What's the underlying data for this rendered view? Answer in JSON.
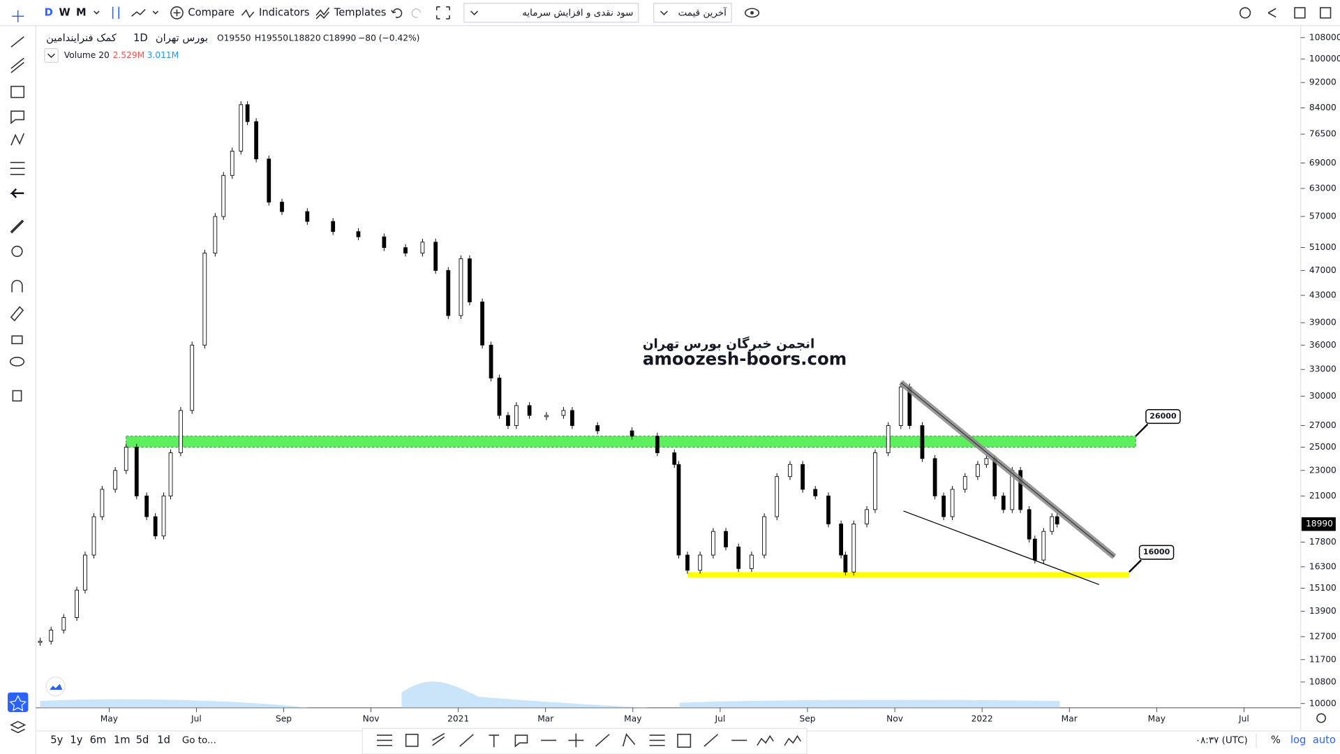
{
  "toolbar": {
    "intervals": [
      "D",
      "W",
      "M"
    ],
    "compare": "Compare",
    "indicators": "Indicators",
    "templates": "Templates",
    "dropdown_1": "سود نقدی و افزایش سرمایه",
    "dropdown_2": "آخرین قیمت"
  },
  "symbol": {
    "name": "کمک فنرایندامین",
    "interval": "1D",
    "exchange": "بورس تهران",
    "open": "O19550",
    "high": "H19550",
    "low": "L18820",
    "close": "C18990",
    "change": "−80 (−0.42%)"
  },
  "volume": {
    "label": "Volume 20",
    "value_1": "2.529M",
    "value_2": "3.011M"
  },
  "watermark": {
    "line_1": "انجمن خبرگان بورس تهران",
    "line_2": "amoozesh-boors.com"
  },
  "bottom_bar": {
    "ranges": [
      "5y",
      "1y",
      "6m",
      "1m",
      "5d",
      "1d"
    ],
    "goto": "Go to...",
    "clock": "۰۸:۳۷ (UTC)",
    "percent": "%",
    "log": "log",
    "auto": "auto"
  },
  "chart_data": {
    "type": "candlestick",
    "log_scale": true,
    "ylim": [
      10000,
      108000
    ],
    "yticks": [
      108000,
      100000,
      92000,
      84000,
      76500,
      69000,
      63000,
      57000,
      51000,
      47000,
      43000,
      39000,
      36000,
      33000,
      30000,
      27000,
      25000,
      23000,
      21000,
      17800,
      16300,
      15100,
      13900,
      12700,
      11700,
      10800,
      10000
    ],
    "xlim": [
      2.42,
      31.3
    ],
    "xticks": [
      {
        "value": 4,
        "label": "May"
      },
      {
        "value": 6,
        "label": "Jul"
      },
      {
        "value": 8,
        "label": "Sep"
      },
      {
        "value": 10,
        "label": "Nov"
      },
      {
        "value": 12,
        "label": "2021"
      },
      {
        "value": 14,
        "label": "Mar"
      },
      {
        "value": 16,
        "label": "May"
      },
      {
        "value": 18,
        "label": "Jul"
      },
      {
        "value": 20,
        "label": "Sep"
      },
      {
        "value": 22,
        "label": "Nov"
      },
      {
        "value": 24,
        "label": "2022"
      },
      {
        "value": 26,
        "label": "Mar"
      },
      {
        "value": 28,
        "label": "May"
      },
      {
        "value": 30,
        "label": "Jul"
      }
    ],
    "x": [
      2.42,
      2.67,
      2.96,
      3.26,
      3.45,
      3.65,
      3.84,
      4.14,
      4.39,
      4.63,
      4.86,
      5.06,
      5.25,
      5.41,
      5.64,
      5.9,
      6.19,
      6.43,
      6.62,
      6.82,
      7.02,
      7.17,
      7.37,
      7.66,
      7.96,
      8.54,
      9.13,
      9.71,
      10.3,
      10.79,
      11.18,
      11.48,
      11.77,
      12.06,
      12.26,
      12.55,
      12.75,
      12.94,
      13.14,
      13.33,
      13.63,
      14.02,
      14.41,
      14.61,
      15.19,
      15.98,
      16.56,
      16.95,
      17.05,
      17.25,
      17.54,
      17.84,
      18.13,
      18.42,
      18.72,
      19.01,
      19.3,
      19.6,
      19.89,
      20.18,
      20.48,
      20.77,
      20.87,
      21.06,
      21.36,
      21.55,
      21.85,
      22.14,
      22.34,
      22.63,
      22.92,
      23.12,
      23.32,
      23.61,
      23.9,
      24.1,
      24.29,
      24.49,
      24.69,
      24.88,
      25.08,
      25.21,
      25.41,
      25.6,
      25.72
    ],
    "series": [
      {
        "name": "Close",
        "color": "#000000",
        "values": [
          12500,
          13000,
          13600,
          15000,
          17000,
          19500,
          21500,
          23000,
          25000,
          21000,
          19500,
          18200,
          21000,
          24500,
          28500,
          36000,
          50000,
          57000,
          66000,
          72000,
          85000,
          80000,
          70000,
          60000,
          58000,
          56000,
          54000,
          53000,
          51000,
          50000,
          52000,
          47000,
          40000,
          49000,
          42000,
          36000,
          32000,
          28000,
          27000,
          29000,
          28000,
          28000,
          28500,
          27000,
          26500,
          26000,
          24500,
          23500,
          17000,
          16100,
          17000,
          18500,
          17500,
          16200,
          17000,
          19500,
          22500,
          23500,
          21500,
          21000,
          19000,
          17000,
          16000,
          19000,
          20000,
          24500,
          27000,
          31000,
          27000,
          24000,
          21000,
          19500,
          21500,
          22500,
          23500,
          24000,
          21000,
          20000,
          23000,
          20000,
          18000,
          16700,
          18500,
          19500,
          18990
        ]
      }
    ],
    "last_price": 18990,
    "zones": [
      {
        "color": "#5cf05c",
        "x": [
          4.39,
          27.52
        ],
        "y": [
          25000,
          26000
        ]
      },
      {
        "color": "#ffff00",
        "x": [
          17.25,
          27.37
        ],
        "y": [
          15700,
          16000
        ]
      }
    ],
    "trend_lines": [
      {
        "x": [
          22.14,
          27.03
        ],
        "y": [
          31500,
          16900
        ],
        "color": "#888888"
      },
      {
        "x": [
          22.2,
          26.68
        ],
        "y": [
          19900,
          15300
        ],
        "color": "#000000"
      }
    ],
    "annotations": [
      {
        "text": "26000",
        "x": 27.52,
        "y": 26000
      },
      {
        "text": "16000",
        "x": 27.37,
        "y": 16000
      }
    ]
  }
}
